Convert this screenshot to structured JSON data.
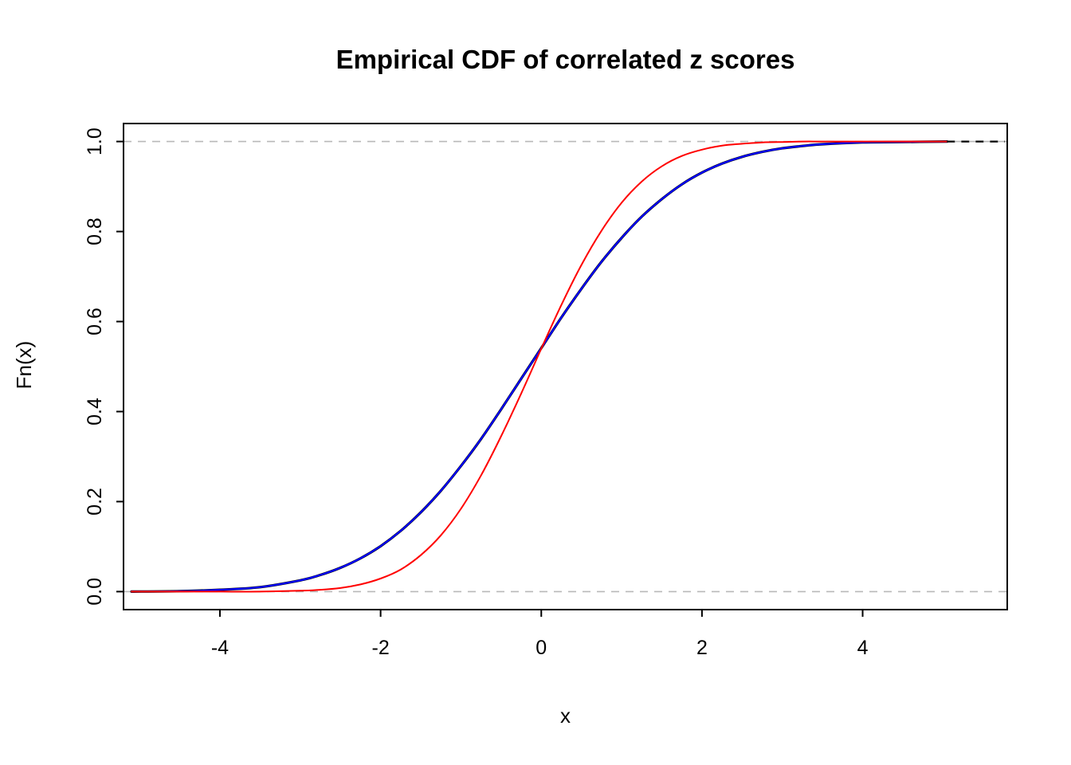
{
  "chart_data": {
    "type": "line",
    "title": "Empirical CDF of correlated z scores",
    "xlabel": "x",
    "ylabel": "Fn(x)",
    "xlim": [
      -5.2,
      5.8
    ],
    "ylim": [
      -0.04,
      1.04
    ],
    "grid": false,
    "legend": "none",
    "x_ticks": [
      -4,
      -2,
      0,
      2,
      4
    ],
    "x_tick_labels": [
      "-4",
      "-2",
      "0",
      "2",
      "4"
    ],
    "y_ticks": [
      0.0,
      0.2,
      0.4,
      0.6,
      0.8,
      1.0
    ],
    "y_tick_labels": [
      "0.0",
      "0.2",
      "0.4",
      "0.6",
      "0.8",
      "1.0"
    ],
    "reference_lines": [
      {
        "y": 0.0,
        "style": "dashed",
        "color": "#b8b8b8"
      },
      {
        "y": 1.0,
        "style": "dashed",
        "color": "#b8b8b8"
      }
    ],
    "x": [
      -5.1,
      -4.5,
      -4.0,
      -3.5,
      -3.0,
      -2.75,
      -2.5,
      -2.25,
      -2.0,
      -1.75,
      -1.5,
      -1.25,
      -1.0,
      -0.75,
      -0.5,
      -0.25,
      0.0,
      0.25,
      0.5,
      0.75,
      1.0,
      1.25,
      1.5,
      1.75,
      2.0,
      2.25,
      2.5,
      2.75,
      3.0,
      3.25,
      3.5,
      4.0,
      4.5,
      5.05
    ],
    "series": [
      {
        "name": "empirical-cdf-black",
        "color": "#000000",
        "width": 3.2,
        "values": [
          0.0,
          0.001,
          0.004,
          0.01,
          0.025,
          0.037,
          0.053,
          0.074,
          0.101,
          0.135,
          0.176,
          0.224,
          0.279,
          0.339,
          0.405,
          0.473,
          0.541,
          0.609,
          0.673,
          0.733,
          0.786,
          0.833,
          0.872,
          0.905,
          0.931,
          0.951,
          0.966,
          0.977,
          0.985,
          0.99,
          0.994,
          0.998,
          0.999,
          1.0
        ]
      },
      {
        "name": "empirical-cdf-blue",
        "color": "#0000ff",
        "width": 2.2,
        "values": [
          0.0,
          0.001,
          0.004,
          0.01,
          0.025,
          0.037,
          0.053,
          0.074,
          0.101,
          0.135,
          0.176,
          0.224,
          0.279,
          0.339,
          0.405,
          0.473,
          0.541,
          0.609,
          0.673,
          0.733,
          0.786,
          0.833,
          0.872,
          0.905,
          0.931,
          0.951,
          0.966,
          0.977,
          0.985,
          0.99,
          0.994,
          0.998,
          0.999,
          1.0
        ]
      },
      {
        "name": "standard-normal-cdf-red",
        "color": "#ff0000",
        "width": 2.0,
        "values": [
          0.0,
          0.0,
          0.0,
          0.0,
          0.002,
          0.004,
          0.008,
          0.016,
          0.029,
          0.049,
          0.081,
          0.125,
          0.184,
          0.258,
          0.345,
          0.44,
          0.54,
          0.637,
          0.726,
          0.802,
          0.864,
          0.911,
          0.945,
          0.968,
          0.982,
          0.991,
          0.995,
          0.998,
          0.999,
          1.0,
          1.0,
          1.0,
          1.0,
          1.0
        ]
      }
    ],
    "black_tail": {
      "x1": 5.05,
      "x2": 5.77,
      "y": 1.0,
      "style": "dashed",
      "color": "#000000"
    }
  }
}
